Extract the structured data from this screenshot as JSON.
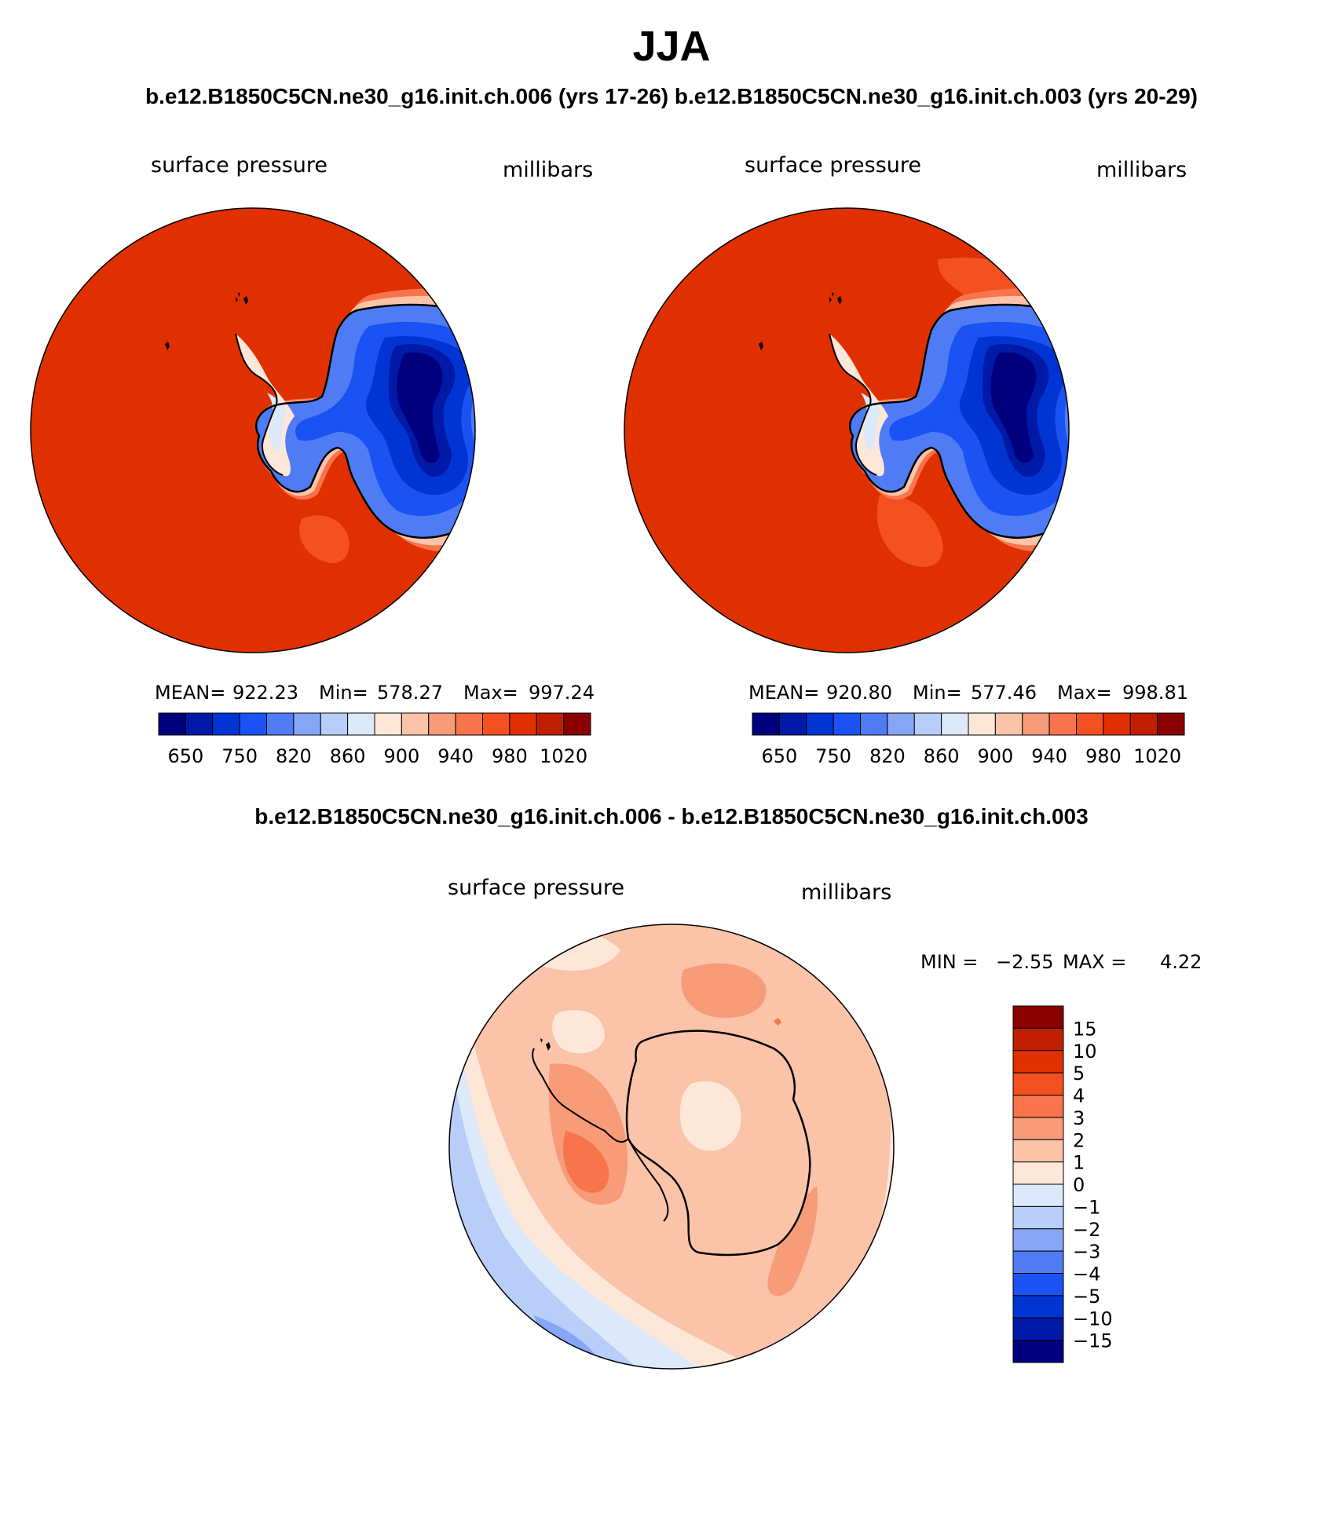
{
  "title": "JJA",
  "subtitle": "b.e12.B1850C5CN.ne30_g16.init.ch.006 (yrs 17-26) b.e12.B1850C5CN.ne30_g16.init.ch.003 (yrs 20-29)",
  "diff_title": "b.e12.B1850C5CN.ne30_g16.init.ch.006 - b.e12.B1850C5CN.ne30_g16.init.ch.003",
  "panels": [
    {
      "variable": "surface pressure",
      "units": "millibars",
      "stats": {
        "mean_label": "MEAN=",
        "mean": "922.23",
        "min_label": "Min=",
        "min": "578.27",
        "max_label": "Max=",
        "max": "997.24"
      }
    },
    {
      "variable": "surface pressure",
      "units": "millibars",
      "stats": {
        "mean_label": "MEAN=",
        "mean": "920.80",
        "min_label": "Min=",
        "min": "577.46",
        "max_label": "Max=",
        "max": "998.81"
      }
    }
  ],
  "diff_panel": {
    "variable": "surface pressure",
    "units": "millibars",
    "min_label": "MIN =",
    "min": "−2.55",
    "max_label": "MAX =",
    "max": "4.22"
  },
  "abs_colorbar": {
    "colors": [
      "#00007f",
      "#0019a6",
      "#0035d3",
      "#1a52f3",
      "#4f7cf5",
      "#86a6f5",
      "#b8cdf7",
      "#dce9fa",
      "#fde7d8",
      "#fbc3a8",
      "#f89b79",
      "#f8744c",
      "#f3511f",
      "#e03000",
      "#bf1f00",
      "#8a0000"
    ],
    "labels": [
      "650",
      "750",
      "820",
      "860",
      "900",
      "940",
      "980",
      "1020"
    ]
  },
  "diff_colorbar": {
    "colors": [
      "#00007f",
      "#0019a6",
      "#0035d3",
      "#1a52f3",
      "#4f7cf5",
      "#86a6f5",
      "#b8cdf7",
      "#dce9fa",
      "#fde7d8",
      "#fbc3a8",
      "#f89b79",
      "#f8744c",
      "#f3511f",
      "#e03000",
      "#bf1f00",
      "#8a0000"
    ],
    "labels": [
      "15",
      "10",
      "5",
      "4",
      "3",
      "2",
      "1",
      "0",
      "−1",
      "−2",
      "−3",
      "−4",
      "−5",
      "−10",
      "−15"
    ]
  }
}
